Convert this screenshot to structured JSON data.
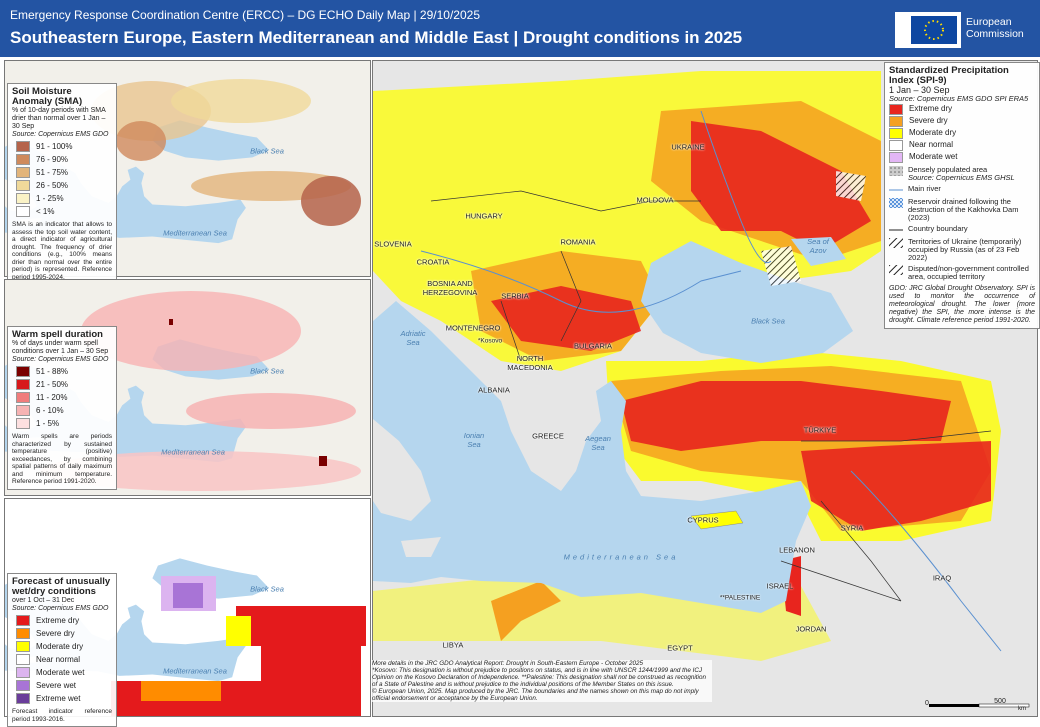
{
  "header": {
    "top_line": "Emergency Response Coordination Centre (ERCC) – DG ECHO Daily Map | 29/10/2025",
    "title": "Southeastern Europe, Eastern Mediterranean and Middle East | Drought conditions in 2025",
    "logo_text": "European Commission"
  },
  "panels": [
    {
      "title": "Soil Moisture Anomaly (SMA)",
      "subtitle": "% of 10-day periods with SMA drier than normal over 1 Jan – 30 Sep",
      "source": "Source: Copernicus EMS GDO",
      "legend": [
        {
          "label": "91 - 100%",
          "color": "#b5634a"
        },
        {
          "label": "76 - 90%",
          "color": "#cf8a5c"
        },
        {
          "label": "51 - 75%",
          "color": "#e2b47a"
        },
        {
          "label": "26 - 50%",
          "color": "#f0d99a"
        },
        {
          "label": "1 - 25%",
          "color": "#fbf3c6"
        },
        {
          "label": "< 1%",
          "color": "#ffffff"
        }
      ],
      "description": "SMA is an indicator that allows to assess the top soil water content, a direct indicator of agricultural drought. The frequency of drier conditions (e.g., 100% means drier than normal over the entire period) is represented. Reference period 1995-2024.",
      "sea_labels": [
        "Black Sea",
        "Mediterranean Sea"
      ]
    },
    {
      "title": "Warm spell duration",
      "subtitle": "% of days under warm spell conditions over 1 Jan – 30 Sep",
      "source": "Source: Copernicus EMS GDO",
      "legend": [
        {
          "label": "51 - 88%",
          "color": "#7a0000"
        },
        {
          "label": "21 - 50%",
          "color": "#d7191c"
        },
        {
          "label": "11 - 20%",
          "color": "#f07c7c"
        },
        {
          "label": "6 - 10%",
          "color": "#f7b3b3"
        },
        {
          "label": "1 - 5%",
          "color": "#fde0e0"
        }
      ],
      "description": "Warm spells are periods characterized by sustained temperature (positive) exceedances, by combining spatial patterns of daily maximum and minimum temperature. Reference period 1991-2020.",
      "sea_labels": [
        "Black Sea",
        "Mediterranean Sea"
      ]
    },
    {
      "title": "Forecast of unusually wet/dry conditions",
      "subtitle": "over 1 Oct – 31 Dec",
      "source": "Source: Copernicus EMS GDO",
      "legend": [
        {
          "label": "Extreme dry",
          "color": "#e41a1c"
        },
        {
          "label": "Severe dry",
          "color": "#ff8c00"
        },
        {
          "label": "Moderate dry",
          "color": "#ffff00"
        },
        {
          "label": "Near normal",
          "color": "#ffffff"
        },
        {
          "label": "Moderate wet",
          "color": "#dcb4f0"
        },
        {
          "label": "Severe wet",
          "color": "#a874d6"
        },
        {
          "label": "Extreme wet",
          "color": "#6a3d9a"
        }
      ],
      "description": "Forecast indicator reference period 1993-2016.",
      "sea_labels": [
        "Black Sea",
        "Mediterranean Sea"
      ]
    }
  ],
  "main_legend": {
    "title": "Standardized Precipitation Index (SPI-9)",
    "period": "1 Jan – 30 Sep",
    "source": "Source: Copernicus EMS GDO SPI ERA5",
    "legend": [
      {
        "label": "Extreme dry",
        "color": "#e8251e"
      },
      {
        "label": "Severe dry",
        "color": "#f5a020"
      },
      {
        "label": "Moderate dry",
        "color": "#ffff00"
      },
      {
        "label": "Near normal",
        "color": "#ffffff"
      },
      {
        "label": "Moderate wet",
        "color": "#e3b6f5"
      }
    ],
    "other": {
      "populated": "Densely populated area",
      "populated_source": "Source: Copernicus EMS GHSL",
      "river": "Main river",
      "reservoir": "Reservoir drained following the destruction of the Kakhovka Dam (2023)",
      "boundary": "Country boundary",
      "occupied": "Territories of Ukraine (temporarily) occupied by Russia (as of 23 Feb 2022)",
      "disputed": "Disputed/non-government controlled area, occupied territory"
    },
    "note": "GDO: JRC Global Drought Observatory. SPI is used to monitor the occurrence of meteorological drought. The lower (more negative) the SPI, the more intense is the drought. Climate reference period 1991-2020."
  },
  "map_labels": {
    "countries": [
      "UKRAINE",
      "MOLDOVA",
      "HUNGARY",
      "ROMANIA",
      "SLOVENIA",
      "CROATIA",
      "BOSNIA AND HERZEGOVINA",
      "SERBIA",
      "MONTENEGRO",
      "*Kosovo",
      "NORTH MACEDONIA",
      "BULGARIA",
      "ALBANIA",
      "GREECE",
      "TÜRKIYE",
      "CYPRUS",
      "SYRIA",
      "LEBANON",
      "IRAQ",
      "ISRAEL",
      "**PALESTINE",
      "JORDAN",
      "EGYPT",
      "LIBYA"
    ],
    "seas": [
      "Black Sea",
      "Sea of Azov",
      "Adriatic Sea",
      "Ionian Sea",
      "Aegean Sea",
      "Mediterranean Sea"
    ]
  },
  "footer": [
    "More details in the JRC GDO Analytical Report: Drought in South-Eastern Europe - October 2025",
    "*Kosovo: This designation is without prejudice to positions on status, and is in line with UNSCR 1244/1999 and the ICJ Opinion on the Kosovo Declaration of Independence. **Palestine: This designation shall not be construed as recognition of a State of Palestine and is without prejudice to the individual positions of the Member States on this issue.",
    "© European Union, 2025. Map produced by the JRC. The boundaries and the names shown on this map do not imply official endorsement or acceptance by the European Union."
  ],
  "scale_bar": {
    "start": "0",
    "end": "500",
    "unit": "km"
  }
}
